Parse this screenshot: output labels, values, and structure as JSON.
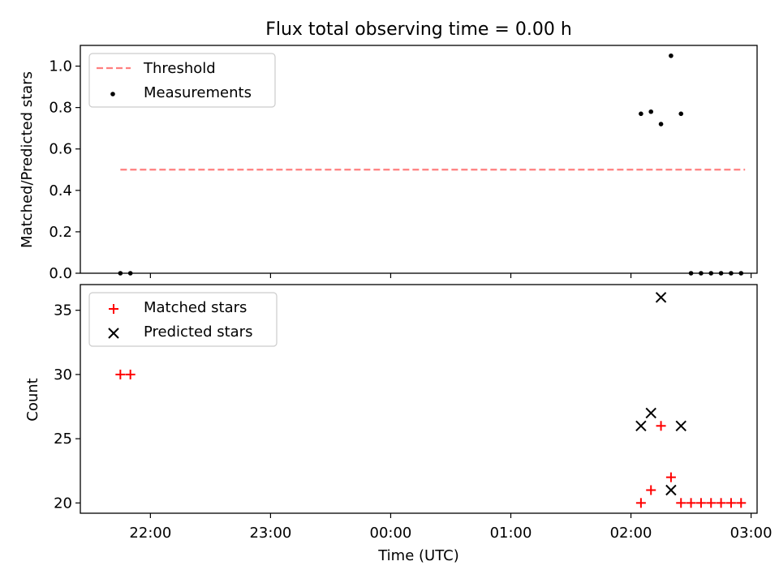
{
  "chart_data": [
    {
      "type": "scatter",
      "title": "Flux total observing time = 0.00 h",
      "xlabel": "",
      "ylabel": "Matched/Predicted stars",
      "ylim": [
        0,
        1.1
      ],
      "y_ticks": [
        0.0,
        0.2,
        0.4,
        0.6,
        0.8,
        1.0
      ],
      "y_tick_labels": [
        "0.0",
        "0.2",
        "0.4",
        "0.6",
        "0.8",
        "1.0"
      ],
      "x_tick_labels_shown": false,
      "legend": {
        "placement": "upper-left",
        "entries": [
          "Threshold",
          "Measurements"
        ]
      },
      "series": [
        {
          "name": "Threshold",
          "kind": "dashed-line",
          "color": "#ff7f7f",
          "x": [
            "21:45",
            "02:57"
          ],
          "y": [
            0.5,
            0.5
          ]
        },
        {
          "name": "Measurements",
          "kind": "dot",
          "color": "#000000",
          "x": [
            "21:45",
            "21:50",
            "02:05",
            "02:10",
            "02:15",
            "02:20",
            "02:25",
            "02:30",
            "02:35",
            "02:40",
            "02:45",
            "02:50",
            "02:55"
          ],
          "y": [
            0,
            0,
            0.77,
            0.78,
            0.72,
            1.05,
            0.77,
            0,
            0,
            0,
            0,
            0,
            0
          ]
        }
      ]
    },
    {
      "type": "scatter",
      "title": "",
      "xlabel": "Time (UTC)",
      "ylabel": "Count",
      "ylim": [
        19.2,
        37
      ],
      "y_ticks": [
        20,
        25,
        30,
        35
      ],
      "y_tick_labels": [
        "20",
        "25",
        "30",
        "35"
      ],
      "x_ticks": [
        "22:00",
        "23:00",
        "00:00",
        "01:00",
        "02:00",
        "03:00"
      ],
      "x_tick_labels": [
        "22:00",
        "23:00",
        "00:00",
        "01:00",
        "02:00",
        "03:00"
      ],
      "legend": {
        "placement": "upper-left",
        "entries": [
          "Matched stars",
          "Predicted stars"
        ]
      },
      "series": [
        {
          "name": "Matched stars",
          "marker": "plus",
          "color": "#ff0000",
          "x": [
            "21:45",
            "21:50",
            "02:05",
            "02:10",
            "02:15",
            "02:20",
            "02:25",
            "02:30",
            "02:35",
            "02:40",
            "02:45",
            "02:50",
            "02:55"
          ],
          "y": [
            30,
            30,
            20,
            21,
            26,
            22,
            20,
            20,
            20,
            20,
            20,
            20,
            20
          ]
        },
        {
          "name": "Predicted stars",
          "marker": "x",
          "color": "#000000",
          "x": [
            "02:05",
            "02:10",
            "02:15",
            "02:20",
            "02:25"
          ],
          "y": [
            26,
            27,
            36,
            21,
            26
          ]
        }
      ]
    }
  ]
}
